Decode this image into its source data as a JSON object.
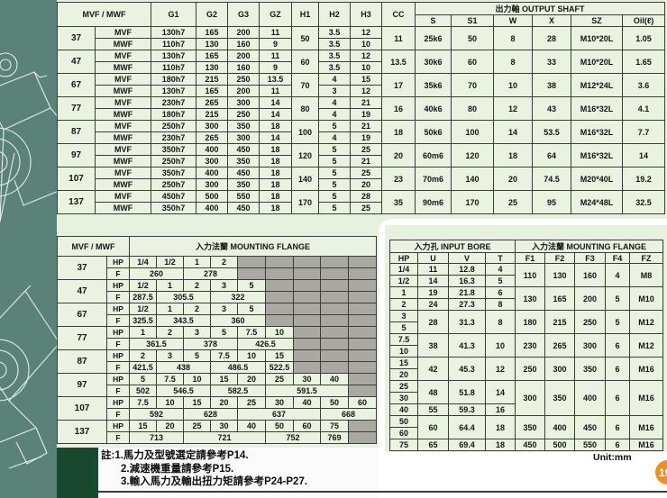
{
  "colors": {
    "table_bg": "#e9f3e0",
    "side_strip_teal": "#5b8279",
    "dark_green_block": "#17492f",
    "gray_cell": "#a9a9a1",
    "page_badge_orange": "#f28e1e"
  },
  "top_table": {
    "size_header": "MVF / MWF",
    "dim_cols": [
      "G1",
      "G2",
      "G3",
      "GZ",
      "H1",
      "H2",
      "H3",
      "CC"
    ],
    "output_shaft_header": "出力軸  OUTPUT SHAFT",
    "shaft_cols": [
      "S",
      "S1",
      "W",
      "X",
      "SZ",
      "Oil(ℓ)"
    ],
    "type_labels": [
      "MVF",
      "MWF"
    ],
    "rows": [
      {
        "size": "37",
        "mvf": [
          "130h7",
          "165",
          "200",
          "11"
        ],
        "mwf": [
          "110h7",
          "130",
          "160",
          "9"
        ],
        "h1": "50",
        "h2": [
          "3.5",
          "3.5"
        ],
        "h3": [
          "12",
          "10"
        ],
        "cc": "11",
        "shaft": [
          "25k6",
          "50",
          "8",
          "28",
          "M10*20L",
          "1.05"
        ]
      },
      {
        "size": "47",
        "mvf": [
          "130h7",
          "165",
          "200",
          "11"
        ],
        "mwf": [
          "110h7",
          "130",
          "160",
          "9"
        ],
        "h1": "60",
        "h2": [
          "3.5",
          "3.5"
        ],
        "h3": [
          "12",
          "10"
        ],
        "cc": "13.5",
        "shaft": [
          "30k6",
          "60",
          "8",
          "33",
          "M10*20L",
          "1.65"
        ]
      },
      {
        "size": "67",
        "mvf": [
          "180h7",
          "215",
          "250",
          "13.5"
        ],
        "mwf": [
          "130h7",
          "165",
          "200",
          "11"
        ],
        "h1": "70",
        "h2": [
          "4",
          "3"
        ],
        "h3": [
          "15",
          "12"
        ],
        "cc": "17",
        "shaft": [
          "35k6",
          "70",
          "10",
          "38",
          "M12*24L",
          "3.6"
        ]
      },
      {
        "size": "77",
        "mvf": [
          "230h7",
          "265",
          "300",
          "14"
        ],
        "mwf": [
          "180h7",
          "215",
          "250",
          "14"
        ],
        "h1": "80",
        "h2": [
          "4",
          "4"
        ],
        "h3": [
          "21",
          "19"
        ],
        "cc": "16",
        "shaft": [
          "40k6",
          "80",
          "12",
          "43",
          "M16*32L",
          "4.1"
        ]
      },
      {
        "size": "87",
        "mvf": [
          "250h7",
          "300",
          "350",
          "18"
        ],
        "mwf": [
          "230h7",
          "265",
          "300",
          "14"
        ],
        "h1": "100",
        "h2": [
          "5",
          "4"
        ],
        "h3": [
          "21",
          "19"
        ],
        "cc": "18",
        "shaft": [
          "50k6",
          "100",
          "14",
          "53.5",
          "M16*32L",
          "7.7"
        ]
      },
      {
        "size": "97",
        "mvf": [
          "350h7",
          "400",
          "450",
          "18"
        ],
        "mwf": [
          "250h7",
          "300",
          "350",
          "18"
        ],
        "h1": "120",
        "h2": [
          "5",
          "5"
        ],
        "h3": [
          "25",
          "21"
        ],
        "cc": "20",
        "shaft": [
          "60m6",
          "120",
          "18",
          "64",
          "M16*32L",
          "14"
        ]
      },
      {
        "size": "107",
        "mvf": [
          "350h7",
          "400",
          "450",
          "18"
        ],
        "mwf": [
          "250h7",
          "300",
          "350",
          "18"
        ],
        "h1": "140",
        "h2": [
          "5",
          "5"
        ],
        "h3": [
          "25",
          "20"
        ],
        "cc": "23",
        "shaft": [
          "70m6",
          "140",
          "20",
          "74.5",
          "M20*40L",
          "19.2"
        ]
      },
      {
        "size": "137",
        "mvf": [
          "450h7",
          "500",
          "550",
          "18"
        ],
        "mwf": [
          "350h7",
          "400",
          "450",
          "18"
        ],
        "h1": "170",
        "h2": [
          "5",
          "5"
        ],
        "h3": [
          "28",
          "25"
        ],
        "cc": "35",
        "shaft": [
          "90m6",
          "170",
          "25",
          "95",
          "M24*48L",
          "32.5"
        ]
      }
    ]
  },
  "flange_table": {
    "size_header": "MVF / MWF",
    "title": "入力法蘭  MOUNTING FLANGE",
    "row_labels": [
      "HP",
      "F"
    ],
    "col_count": 9,
    "rows": [
      {
        "size": "37",
        "hp": [
          "1/4",
          "1/2",
          "1",
          "2"
        ],
        "f": [
          [
            "260",
            2
          ],
          [
            "278",
            2
          ]
        ]
      },
      {
        "size": "47",
        "hp": [
          "1/2",
          "1",
          "2",
          "3",
          "5"
        ],
        "f": [
          [
            "287.5",
            1
          ],
          [
            "305.5",
            2
          ],
          [
            "322",
            2
          ]
        ]
      },
      {
        "size": "67",
        "hp": [
          "1/2",
          "1",
          "2",
          "3",
          "5"
        ],
        "f": [
          [
            "325.5",
            1
          ],
          [
            "343.5",
            2
          ],
          [
            "360",
            2
          ]
        ]
      },
      {
        "size": "77",
        "hp": [
          "1",
          "2",
          "3",
          "5",
          "7.5",
          "10"
        ],
        "f": [
          [
            "361.5",
            2
          ],
          [
            "378",
            2
          ],
          [
            "426.5",
            2
          ]
        ]
      },
      {
        "size": "87",
        "hp": [
          "2",
          "3",
          "5",
          "7.5",
          "10",
          "15"
        ],
        "f": [
          [
            "421.5",
            1
          ],
          [
            "438",
            2
          ],
          [
            "486.5",
            2
          ],
          [
            "522.5",
            1
          ]
        ]
      },
      {
        "size": "97",
        "hp": [
          "5",
          "7.5",
          "10",
          "15",
          "20",
          "25",
          "30",
          "40"
        ],
        "f": [
          [
            "502",
            1
          ],
          [
            "546.5",
            2
          ],
          [
            "582.5",
            2
          ],
          [
            "591.5",
            3
          ]
        ]
      },
      {
        "size": "107",
        "hp": [
          "7.5",
          "10",
          "15",
          "20",
          "25",
          "30",
          "40",
          "50",
          "60"
        ],
        "f": [
          [
            "592",
            2
          ],
          [
            "628",
            2
          ],
          [
            "637",
            3
          ],
          [
            "668",
            2
          ]
        ]
      },
      {
        "size": "137",
        "hp": [
          "15",
          "20",
          "25",
          "30",
          "40",
          "50",
          "60",
          "75"
        ],
        "f": [
          [
            "713",
            2
          ],
          [
            "721",
            3
          ],
          [
            "752",
            2
          ],
          [
            "769",
            1
          ]
        ]
      }
    ]
  },
  "input_bore_table": {
    "bore_title": "入力孔  INPUT BORE",
    "flange_title": "入力法蘭  MOUNTING FLANGE",
    "cols": [
      "HP",
      "U",
      "V",
      "T",
      "F1",
      "F2",
      "F3",
      "F4",
      "FZ"
    ],
    "rows": [
      {
        "hp": "1/4",
        "uvt": [
          [
            "11",
            "12.8",
            "4"
          ],
          1
        ],
        "flange": [
          [
            "110",
            "130",
            "160",
            "4",
            "M8"
          ],
          2
        ]
      },
      {
        "hp": "1/2",
        "uvt": [
          [
            "14",
            "16.3",
            "5"
          ],
          1
        ]
      },
      {
        "hp": "1",
        "uvt": [
          [
            "19",
            "21.8",
            "6"
          ],
          1
        ],
        "flange": [
          [
            "130",
            "165",
            "200",
            "5",
            "M10"
          ],
          2
        ]
      },
      {
        "hp": "2",
        "uvt": [
          [
            "24",
            "27.3",
            "8"
          ],
          1
        ]
      },
      {
        "hp": "3",
        "uvt": [
          [
            "28",
            "31.3",
            "8"
          ],
          2
        ],
        "flange": [
          [
            "180",
            "215",
            "250",
            "5",
            "M12"
          ],
          2
        ]
      },
      {
        "hp": "5"
      },
      {
        "hp": "7.5",
        "uvt": [
          [
            "38",
            "41.3",
            "10"
          ],
          2
        ],
        "flange": [
          [
            "230",
            "265",
            "300",
            "6",
            "M12"
          ],
          2
        ]
      },
      {
        "hp": "10"
      },
      {
        "hp": "15",
        "uvt": [
          [
            "42",
            "45.3",
            "12"
          ],
          2
        ],
        "flange": [
          [
            "250",
            "300",
            "350",
            "6",
            "M16"
          ],
          2
        ]
      },
      {
        "hp": "20"
      },
      {
        "hp": "25",
        "uvt": [
          [
            "48",
            "51.8",
            "14"
          ],
          2
        ],
        "flange": [
          [
            "300",
            "350",
            "400",
            "6",
            "M16"
          ],
          3
        ]
      },
      {
        "hp": "30"
      },
      {
        "hp": "40",
        "uvt": [
          [
            "55",
            "59.3",
            "16"
          ],
          1
        ]
      },
      {
        "hp": "50",
        "uvt": [
          [
            "60",
            "64.4",
            "18"
          ],
          2
        ],
        "flange": [
          [
            "350",
            "400",
            "450",
            "6",
            "M16"
          ],
          2
        ]
      },
      {
        "hp": "60"
      },
      {
        "hp": "75",
        "uvt": [
          [
            "65",
            "69.4",
            "18"
          ],
          1
        ],
        "flange": [
          [
            "450",
            "500",
            "550",
            "6",
            "M16"
          ],
          1
        ]
      }
    ]
  },
  "footer": {
    "notes": [
      "註:1.馬力及型號選定請參考P14.",
      "2.減速機重量請參考P15.",
      "3.輸入馬力及輸出扭力矩請參考P24-P27."
    ],
    "unit_label": "Unit:mm",
    "page_number": "19"
  }
}
